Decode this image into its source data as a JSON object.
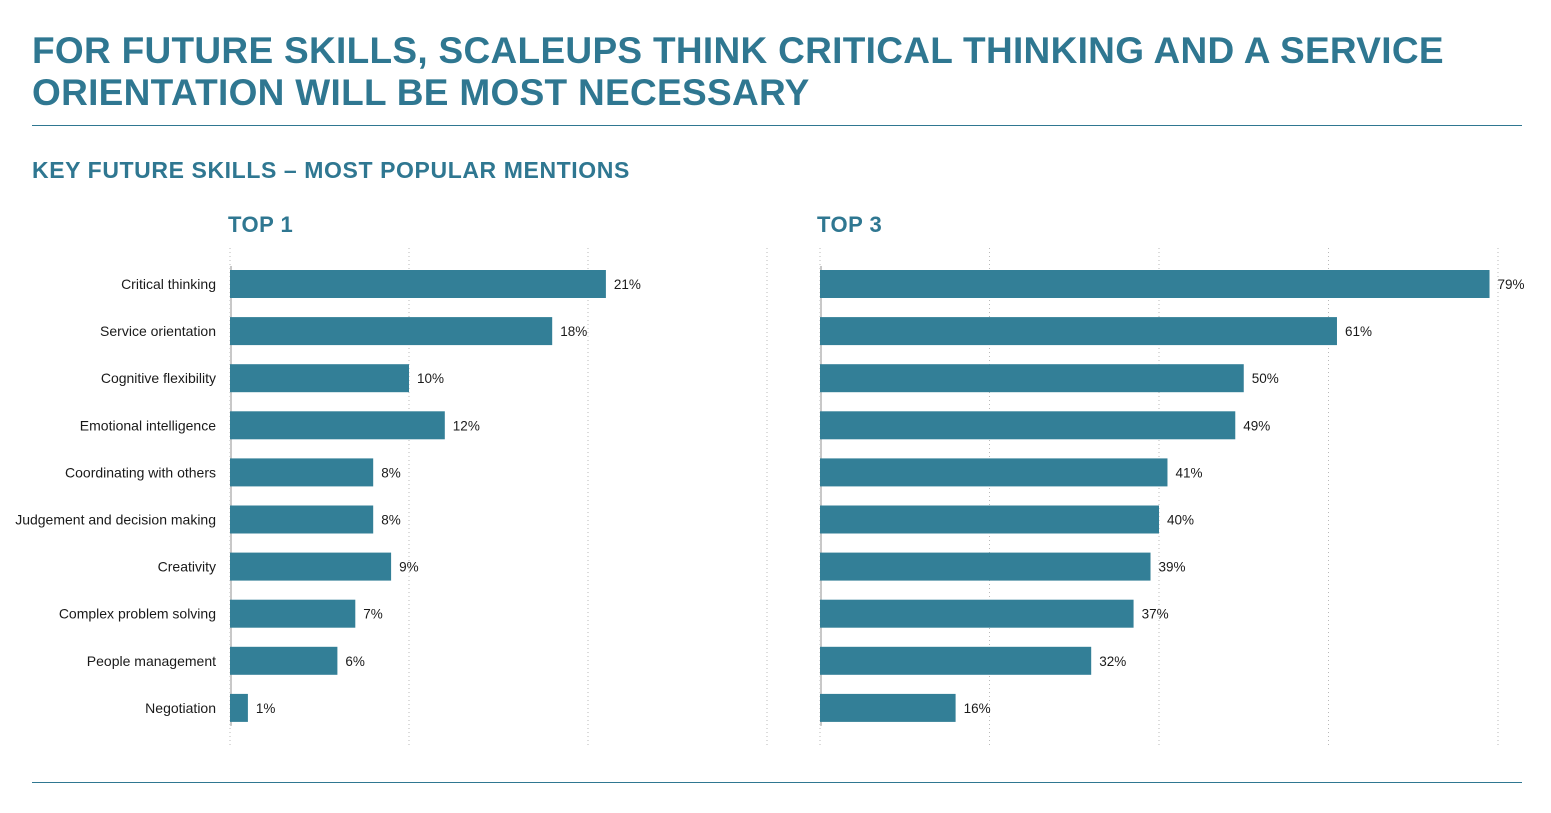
{
  "header": {
    "title_line1": "FOR FUTURE SKILLS, SCALEUPS THINK CRITICAL THINKING AND A SERVICE",
    "title_line2": "ORIENTATION WILL BE MOST NECESSARY",
    "subtitle": "KEY FUTURE SKILLS – MOST POPULAR MENTIONS"
  },
  "colors": {
    "accent": "#2f7791",
    "bar": "#337f97"
  },
  "chart_data": [
    {
      "type": "bar",
      "orientation": "horizontal",
      "title": "TOP 1",
      "categories": [
        "Critical thinking",
        "Service orientation",
        "Cognitive flexibility",
        "Emotional intelligence",
        "Coordinating with others",
        "Judgement and decision making",
        "Creativity",
        "Complex problem solving",
        "People management",
        "Negotiation"
      ],
      "values": [
        21,
        18,
        10,
        12,
        8,
        8,
        9,
        7,
        6,
        1
      ],
      "value_labels": [
        "21%",
        "18%",
        "10%",
        "12%",
        "8%",
        "8%",
        "9%",
        "7%",
        "6%",
        "1%"
      ],
      "xlim": [
        0,
        30
      ],
      "grid": true,
      "legend": "none"
    },
    {
      "type": "bar",
      "orientation": "horizontal",
      "title": "TOP 3",
      "categories": [
        "Critical thinking",
        "Service orientation",
        "Cognitive flexibility",
        "Emotional intelligence",
        "Coordinating with others",
        "Judgement and decision making",
        "Creativity",
        "Complex problem solving",
        "People management",
        "Negotiation"
      ],
      "values": [
        79,
        61,
        50,
        49,
        41,
        40,
        39,
        37,
        32,
        16
      ],
      "value_labels": [
        "79%",
        "61%",
        "50%",
        "49%",
        "41%",
        "40%",
        "39%",
        "37%",
        "32%",
        "16%"
      ],
      "xlim": [
        0,
        80
      ],
      "grid": true,
      "legend": "none"
    }
  ]
}
